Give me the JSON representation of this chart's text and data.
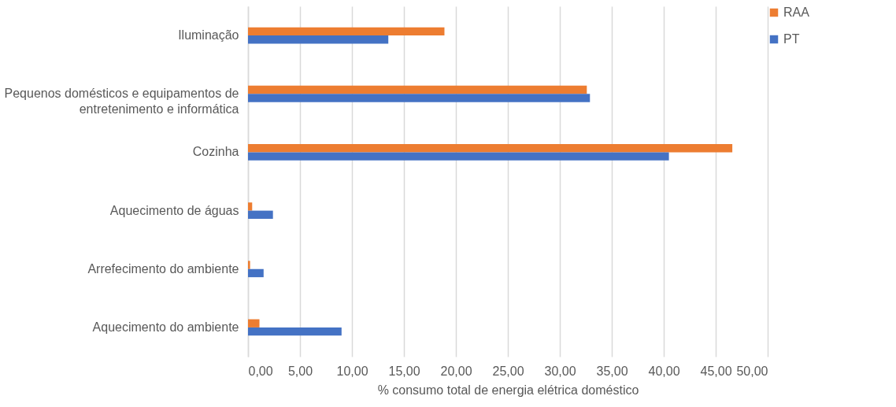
{
  "chart_data": {
    "type": "bar",
    "orientation": "horizontal",
    "xlabel": "%  consumo total de energia elétrica doméstico",
    "categories": [
      "Iluminação",
      "Pequenos domésticos e equipamentos de\nentretenimento e informática",
      "Cozinha",
      "Aquecimento de águas",
      "Arrefecimento do ambiente",
      "Aquecimento do ambiente"
    ],
    "series": [
      {
        "name": "RAA",
        "color": "#ed7d31",
        "values": [
          18.9,
          32.6,
          46.6,
          0.4,
          0.2,
          1.1
        ]
      },
      {
        "name": "PT",
        "color": "#4472c4",
        "values": [
          13.5,
          32.9,
          40.5,
          2.4,
          1.5,
          9.0
        ]
      }
    ],
    "xlim": [
      0,
      50
    ],
    "xticks": [
      {
        "value": 0,
        "label": "0,00"
      },
      {
        "value": 5,
        "label": "5,00"
      },
      {
        "value": 10,
        "label": "10,00"
      },
      {
        "value": 15,
        "label": "15,00"
      },
      {
        "value": 20,
        "label": "20,00"
      },
      {
        "value": 25,
        "label": "25,00"
      },
      {
        "value": 30,
        "label": "30,00"
      },
      {
        "value": 35,
        "label": "35,00"
      },
      {
        "value": 40,
        "label": "40,00"
      },
      {
        "value": 45,
        "label": "45,00"
      },
      {
        "value": 50,
        "label": "50,00"
      }
    ],
    "grid": "x",
    "legend": "right"
  }
}
